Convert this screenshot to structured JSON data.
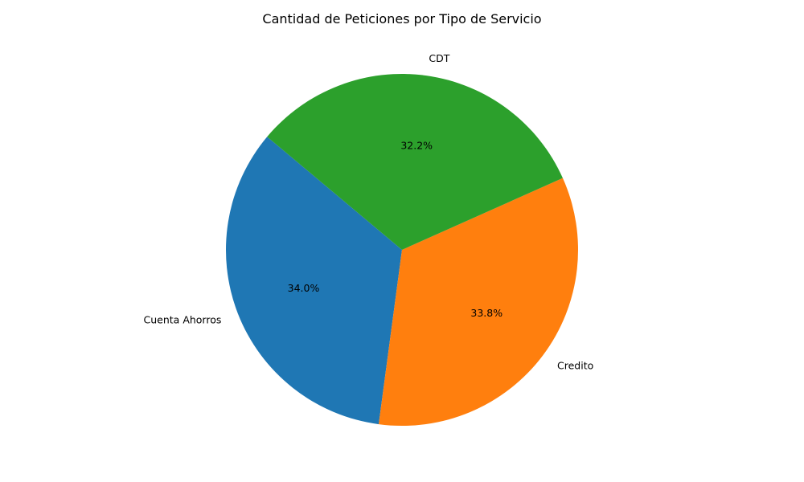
{
  "chart_data": {
    "type": "pie",
    "title": "Cantidad de Peticiones por Tipo de Servicio",
    "categories": [
      "Cuenta Ahorros",
      "Credito",
      "CDT"
    ],
    "values": [
      34.0,
      33.8,
      32.2
    ],
    "value_labels": [
      "34.0%",
      "33.8%",
      "32.2%"
    ],
    "start_angle_deg": 140,
    "direction": "counterclockwise",
    "colors": [
      "#1f77b4",
      "#ff7f0e",
      "#2ca02c"
    ],
    "legend": "none"
  }
}
